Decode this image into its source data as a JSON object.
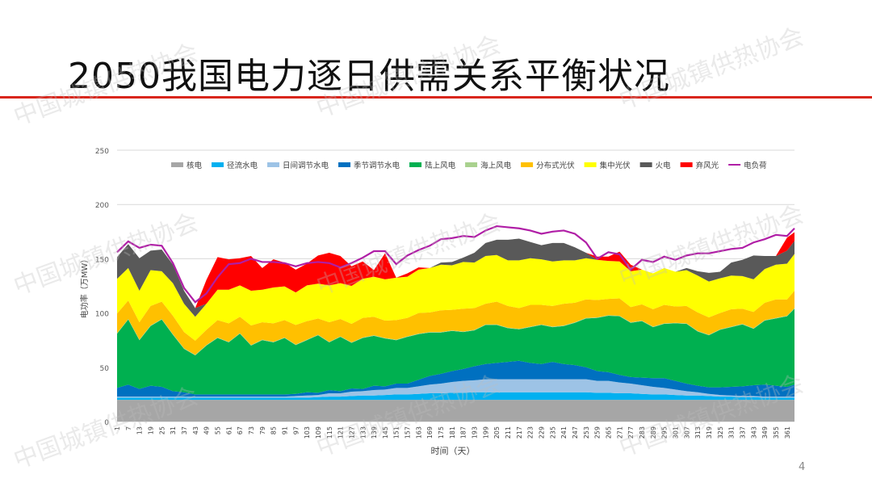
{
  "slide": {
    "title": "2050我国电力逐日供需关系平衡状况",
    "page_number": "4",
    "watermark": "中国城镇供热协会"
  },
  "colors": {
    "title_rule": "#d9261c"
  },
  "chart_data": {
    "type": "area",
    "title": "",
    "xlabel": "时间（天）",
    "ylabel": "电功率（万MW）",
    "ylim": [
      0,
      250
    ],
    "yticks": [
      0,
      50,
      100,
      150,
      200,
      250
    ],
    "grid": true,
    "legend_position": "top",
    "x_tick_labels": [
      "1",
      "7",
      "13",
      "19",
      "25",
      "31",
      "37",
      "43",
      "49",
      "55",
      "61",
      "67",
      "73",
      "79",
      "85",
      "91",
      "97",
      "103",
      "109",
      "115",
      "121",
      "127",
      "133",
      "139",
      "145",
      "151",
      "157",
      "163",
      "169",
      "175",
      "181",
      "187",
      "193",
      "199",
      "205",
      "211",
      "217",
      "223",
      "229",
      "235",
      "241",
      "247",
      "253",
      "259",
      "265",
      "271",
      "277",
      "283",
      "289",
      "295",
      "301",
      "307",
      "313",
      "319",
      "325",
      "331",
      "337",
      "343",
      "349",
      "355",
      "361"
    ],
    "x_days": [
      1,
      7,
      13,
      19,
      25,
      31,
      37,
      43,
      49,
      55,
      61,
      67,
      73,
      79,
      85,
      91,
      97,
      103,
      109,
      115,
      121,
      127,
      133,
      139,
      145,
      151,
      157,
      163,
      169,
      175,
      181,
      187,
      193,
      199,
      205,
      211,
      217,
      223,
      229,
      235,
      241,
      247,
      253,
      259,
      265,
      271,
      277,
      283,
      289,
      295,
      301,
      307,
      313,
      319,
      325,
      331,
      337,
      343,
      349,
      355,
      361,
      365
    ],
    "series": [
      {
        "name": "核电",
        "color": "#a6a6a6",
        "kind": "stack",
        "values": [
          20,
          20,
          20,
          20,
          20,
          20,
          20,
          20,
          20,
          20,
          20,
          20,
          20,
          20,
          20,
          20,
          20,
          20,
          20,
          20,
          20,
          20,
          20,
          20,
          20,
          20,
          20,
          20,
          20,
          20,
          20,
          20,
          20,
          20,
          20,
          20,
          20,
          20,
          20,
          20,
          20,
          20,
          20,
          20,
          20,
          20,
          20,
          20,
          20,
          20,
          20,
          20,
          20,
          20,
          20,
          20,
          20,
          20,
          20,
          20,
          20,
          20
        ]
      },
      {
        "name": "径流水电",
        "color": "#00b0f0",
        "kind": "stack",
        "values": [
          2,
          2,
          2,
          2,
          2,
          2,
          2,
          2,
          2,
          2,
          2,
          2,
          2,
          2,
          2,
          2,
          2,
          2,
          2.5,
          3,
          3,
          3.5,
          4,
          4,
          4.5,
          5,
          5,
          5.5,
          6,
          6,
          6.5,
          6.5,
          7,
          7,
          7,
          7,
          7,
          7,
          7,
          7,
          7,
          7,
          7,
          6.5,
          6.5,
          6,
          6,
          5.5,
          5,
          5,
          4.5,
          4,
          4,
          3.5,
          3,
          3,
          2.5,
          2.5,
          2,
          2,
          2,
          2
        ]
      },
      {
        "name": "日间调节水电",
        "color": "#9dc3e6",
        "kind": "stack",
        "values": [
          1,
          1,
          1,
          1,
          1,
          1,
          1,
          1,
          1,
          1,
          1,
          1,
          1,
          1,
          1,
          1,
          1.5,
          2,
          2,
          3,
          3,
          4,
          4,
          5,
          5,
          6,
          6,
          7,
          8,
          9,
          10,
          11,
          11,
          12,
          12,
          12,
          12,
          12,
          12,
          12,
          12,
          12,
          12,
          11,
          11,
          10,
          9,
          8,
          7,
          6,
          5,
          4,
          3,
          2,
          1.5,
          1,
          1,
          1,
          1,
          1,
          1,
          1
        ]
      },
      {
        "name": "季节调节水电",
        "color": "#0070c0",
        "kind": "stack",
        "values": [
          8,
          11,
          7,
          10,
          9,
          5,
          4,
          2,
          2,
          2,
          2,
          2,
          2,
          2,
          2,
          2,
          2,
          3,
          2,
          3,
          2,
          3,
          2,
          4,
          3,
          4,
          4,
          6,
          8,
          9,
          10,
          11,
          13,
          14,
          15,
          16,
          17,
          15,
          14,
          16,
          14,
          13,
          11,
          9,
          8,
          7,
          6,
          7,
          8,
          9,
          8,
          7,
          6,
          6,
          7,
          8,
          9,
          10,
          11,
          10,
          9,
          11
        ]
      },
      {
        "name": "陆上风电",
        "color": "#00b050",
        "kind": "stack",
        "values": [
          50,
          60,
          45,
          55,
          62,
          52,
          40,
          36,
          45,
          52,
          48,
          56,
          45,
          50,
          48,
          52,
          45,
          48,
          53,
          44,
          50,
          42,
          47,
          46,
          44,
          40,
          43,
          42,
          40,
          38,
          37,
          34,
          33,
          36,
          35,
          31,
          29,
          33,
          36,
          32,
          35,
          39,
          45,
          49,
          52,
          54,
          50,
          52,
          47,
          50,
          53,
          55,
          50,
          48,
          53,
          55,
          57,
          52,
          59,
          62,
          65,
          70
        ]
      },
      {
        "name": "海上风电",
        "color": "#a9d18e",
        "kind": "stack",
        "values": [
          0.5,
          0.5,
          0.5,
          0.5,
          0.5,
          0.5,
          0.5,
          0.5,
          0.5,
          0.5,
          0.5,
          0.5,
          0.5,
          0.5,
          0.5,
          0.5,
          0.5,
          0.5,
          0.5,
          0.5,
          0.5,
          0.5,
          0.5,
          0.5,
          0.5,
          0.5,
          0.5,
          0.5,
          0.5,
          0.5,
          0.5,
          0.5,
          0.5,
          0.5,
          0.5,
          0.5,
          0.5,
          0.5,
          0.5,
          0.5,
          0.5,
          0.5,
          0.5,
          0.5,
          0.5,
          0.5,
          0.5,
          0.5,
          0.5,
          0.5,
          0.5,
          0.5,
          0.5,
          0.5,
          0.5,
          0.5,
          0.5,
          0.5,
          0.5,
          0.5,
          0.5,
          0.5
        ]
      },
      {
        "name": "分布式光伏",
        "color": "#ffc000",
        "kind": "stack",
        "values": [
          18,
          17,
          16,
          18,
          16,
          17,
          15,
          13,
          14,
          16,
          17,
          15,
          18,
          16,
          17,
          16,
          18,
          17,
          15,
          18,
          16,
          17,
          18,
          17,
          16,
          18,
          17,
          19,
          18,
          20,
          19,
          21,
          20,
          19,
          21,
          20,
          19,
          20,
          18,
          19,
          20,
          18,
          17,
          16,
          15,
          16,
          14,
          15,
          16,
          17,
          15,
          16,
          17,
          16,
          15,
          16,
          14,
          15,
          16,
          17,
          15,
          16
        ]
      },
      {
        "name": "集中光伏",
        "color": "#ffff00",
        "kind": "stack",
        "values": [
          32,
          30,
          29,
          33,
          28,
          30,
          26,
          22,
          24,
          28,
          31,
          29,
          32,
          30,
          33,
          31,
          30,
          33,
          32,
          34,
          33,
          35,
          36,
          37,
          38,
          39,
          38,
          40,
          41,
          42,
          41,
          43,
          42,
          44,
          43,
          42,
          44,
          43,
          42,
          41,
          40,
          39,
          38,
          37,
          35,
          34,
          33,
          32,
          33,
          34,
          32,
          33,
          34,
          33,
          32,
          31,
          30,
          30,
          31,
          32,
          33,
          34
        ]
      },
      {
        "name": "火电",
        "color": "#595959",
        "kind": "stack",
        "values": [
          20,
          22,
          30,
          18,
          20,
          17,
          12,
          8,
          0,
          0,
          0,
          0,
          0,
          0,
          0,
          0,
          0,
          0,
          0,
          0,
          0,
          0,
          0,
          0,
          0,
          0,
          0,
          0,
          0,
          2,
          3,
          4,
          9,
          12,
          14,
          19,
          20,
          15,
          13,
          17,
          16,
          12,
          5,
          0,
          0,
          0,
          0,
          0,
          0,
          0,
          0,
          2,
          4,
          8,
          6,
          12,
          15,
          22,
          12,
          8,
          12,
          12
        ]
      },
      {
        "name": "弃风光",
        "color": "#ff0000",
        "kind": "stack",
        "values": [
          0,
          0,
          0,
          0,
          0,
          0,
          0,
          0,
          22,
          30,
          28,
          25,
          32,
          20,
          26,
          22,
          21,
          20,
          26,
          30,
          25,
          18,
          16,
          6,
          24,
          0,
          3,
          2,
          0,
          0,
          0,
          0,
          0,
          0,
          0,
          0,
          0,
          0,
          0,
          0,
          0,
          0,
          0,
          3,
          4,
          9,
          6,
          0,
          0,
          0,
          0,
          0,
          0,
          0,
          0,
          0,
          0,
          0,
          0,
          0,
          12,
          8
        ]
      },
      {
        "name": "电负荷",
        "color": "#b01ea6",
        "kind": "line",
        "values": [
          156,
          166,
          160,
          163,
          162,
          146,
          123,
          110,
          118,
          133,
          145,
          146,
          150,
          147,
          147,
          146,
          143,
          146,
          147,
          146,
          142,
          146,
          151,
          157,
          157,
          145,
          153,
          158,
          162,
          168,
          169,
          171,
          170,
          176,
          180,
          179,
          178,
          176,
          173,
          175,
          176,
          173,
          165,
          150,
          156,
          154,
          140,
          149,
          147,
          152,
          149,
          153,
          155,
          155,
          157,
          159,
          160,
          165,
          168,
          172,
          171,
          178
        ]
      }
    ]
  }
}
